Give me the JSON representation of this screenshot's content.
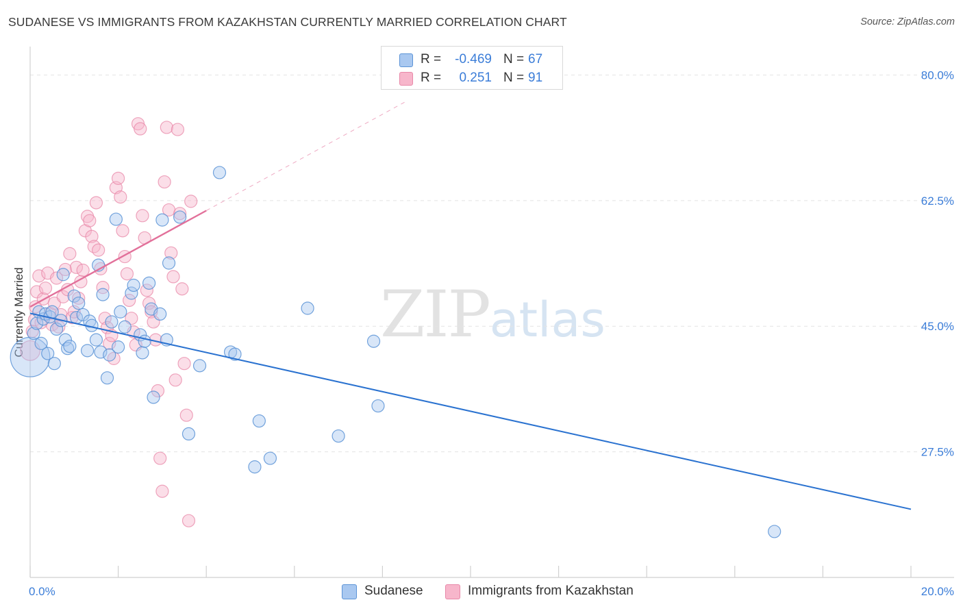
{
  "header": {
    "title": "SUDANESE VS IMMIGRANTS FROM KAZAKHSTAN CURRENTLY MARRIED CORRELATION CHART",
    "source": "Source: ZipAtlas.com"
  },
  "watermark": {
    "zip": "ZIP",
    "atlas": "atlas"
  },
  "legend_top": {
    "rows": [
      {
        "r_label": "R =",
        "r_value": "-0.469",
        "n_label": "N =",
        "n_value": "67",
        "color": "#a9c8f0"
      },
      {
        "r_label": "R =",
        "r_value": "0.251",
        "n_label": "N =",
        "n_value": "91",
        "color": "#f7b6cb"
      }
    ]
  },
  "legend_bottom": {
    "items": [
      {
        "label": "Sudanese",
        "color": "#a9c8f0"
      },
      {
        "label": "Immigrants from Kazakhstan",
        "color": "#f7b6cb"
      }
    ]
  },
  "chart_data": {
    "type": "scatter",
    "title": "SUDANESE VS IMMIGRANTS FROM KAZAKHSTAN CURRENTLY MARRIED CORRELATION CHART",
    "xlabel": "",
    "ylabel": "Currently Married",
    "xlim": [
      0,
      20
    ],
    "ylim": [
      10,
      83
    ],
    "x_tick_labels": [
      "0.0%",
      "20.0%"
    ],
    "y_ticks": [
      27.5,
      45.0,
      62.5,
      80.0
    ],
    "y_tick_labels": [
      "27.5%",
      "45.0%",
      "62.5%",
      "80.0%"
    ],
    "grid": "horizontal dashed",
    "legend_placement": "top-center and bottom",
    "colors": {
      "sudanese_fill": "#a9c8f0",
      "sudanese_stroke": "#5b93d6",
      "sudanese_line": "#2a72d0",
      "kazakh_fill": "#f7b6cb",
      "kazakh_stroke": "#e888a8",
      "kazakh_line": "#e2709a",
      "tick_label": "#3b7dd8",
      "axis": "#d0d0d0",
      "grid": "#e4e4e4"
    },
    "series": [
      {
        "name": "Sudanese",
        "r": -0.469,
        "n": 67,
        "trend": {
          "x0": 0.0,
          "y0": 46.8,
          "x1": 20.0,
          "y1": 19.5
        },
        "points": [
          [
            0.0,
            40.7,
            3.2
          ],
          [
            0.08,
            44.0,
            1
          ],
          [
            0.15,
            45.4,
            1
          ],
          [
            0.2,
            47.0,
            1
          ],
          [
            0.25,
            42.6,
            1
          ],
          [
            0.3,
            46.0,
            1
          ],
          [
            0.35,
            46.7,
            1
          ],
          [
            0.4,
            41.2,
            1
          ],
          [
            0.45,
            46.3,
            1
          ],
          [
            0.5,
            47.0,
            1
          ],
          [
            0.55,
            39.8,
            1
          ],
          [
            0.6,
            44.6,
            1
          ],
          [
            0.7,
            45.8,
            1
          ],
          [
            0.75,
            52.2,
            1
          ],
          [
            0.8,
            43.1,
            1
          ],
          [
            0.85,
            41.9,
            1
          ],
          [
            0.9,
            42.2,
            1
          ],
          [
            1.0,
            49.2,
            1
          ],
          [
            1.05,
            46.2,
            1
          ],
          [
            1.1,
            48.2,
            1
          ],
          [
            1.2,
            46.6,
            1
          ],
          [
            1.3,
            41.6,
            1
          ],
          [
            1.35,
            45.7,
            1
          ],
          [
            1.4,
            45.1,
            1
          ],
          [
            1.5,
            43.1,
            1
          ],
          [
            1.55,
            53.5,
            1
          ],
          [
            1.6,
            41.4,
            1
          ],
          [
            1.65,
            49.4,
            1
          ],
          [
            1.75,
            37.8,
            1
          ],
          [
            1.8,
            41.0,
            1
          ],
          [
            1.85,
            45.6,
            1
          ],
          [
            1.95,
            59.9,
            1
          ],
          [
            2.0,
            42.1,
            1
          ],
          [
            2.05,
            47.0,
            1
          ],
          [
            2.15,
            44.9,
            1
          ],
          [
            2.3,
            49.6,
            1
          ],
          [
            2.35,
            50.7,
            1
          ],
          [
            2.5,
            43.8,
            1
          ],
          [
            2.55,
            41.3,
            1
          ],
          [
            2.6,
            42.9,
            1
          ],
          [
            2.7,
            51.0,
            1
          ],
          [
            2.75,
            47.4,
            1
          ],
          [
            2.8,
            35.1,
            1
          ],
          [
            2.95,
            46.7,
            1
          ],
          [
            3.0,
            59.8,
            1
          ],
          [
            3.1,
            43.1,
            1
          ],
          [
            3.15,
            53.8,
            1
          ],
          [
            3.4,
            60.2,
            1
          ],
          [
            3.6,
            30.0,
            1
          ],
          [
            3.85,
            39.5,
            1
          ],
          [
            4.3,
            66.4,
            1
          ],
          [
            4.55,
            41.4,
            1
          ],
          [
            4.65,
            41.1,
            1
          ],
          [
            5.1,
            25.4,
            1
          ],
          [
            5.2,
            31.8,
            1
          ],
          [
            5.45,
            26.6,
            1
          ],
          [
            6.3,
            47.5,
            1
          ],
          [
            7.0,
            29.7,
            1
          ],
          [
            7.8,
            42.9,
            1
          ],
          [
            7.9,
            33.9,
            1
          ],
          [
            16.9,
            16.4,
            1
          ]
        ]
      },
      {
        "name": "Immigrants from Kazakhstan",
        "r": 0.251,
        "n": 91,
        "trend": {
          "x0": 0.0,
          "y0": 47.7,
          "x1": 4.0,
          "y1": 61.1,
          "dash_to_x": 8.5,
          "dash_to_y": 76.2
        },
        "points": [
          [
            0.0,
            41.6,
            1.6
          ],
          [
            0.05,
            44.3,
            1
          ],
          [
            0.1,
            45.9,
            1
          ],
          [
            0.12,
            47.7,
            1
          ],
          [
            0.15,
            49.8,
            1
          ],
          [
            0.2,
            52.0,
            1
          ],
          [
            0.25,
            45.5,
            1
          ],
          [
            0.3,
            48.8,
            1
          ],
          [
            0.35,
            50.3,
            1
          ],
          [
            0.4,
            52.4,
            1
          ],
          [
            0.45,
            46.8,
            1
          ],
          [
            0.5,
            45.2,
            1
          ],
          [
            0.55,
            48.2,
            1
          ],
          [
            0.6,
            51.7,
            1
          ],
          [
            0.65,
            44.9,
            1
          ],
          [
            0.7,
            46.6,
            1
          ],
          [
            0.75,
            49.1,
            1
          ],
          [
            0.8,
            52.9,
            1
          ],
          [
            0.85,
            50.1,
            1
          ],
          [
            0.9,
            55.1,
            1
          ],
          [
            0.95,
            46.2,
            1
          ],
          [
            1.0,
            47.0,
            1
          ],
          [
            1.05,
            53.2,
            1
          ],
          [
            1.1,
            48.9,
            1
          ],
          [
            1.15,
            51.2,
            1
          ],
          [
            1.2,
            52.8,
            1
          ],
          [
            1.25,
            58.3,
            1
          ],
          [
            1.3,
            60.3,
            1
          ],
          [
            1.35,
            59.7,
            1
          ],
          [
            1.4,
            57.5,
            1
          ],
          [
            1.45,
            56.1,
            1
          ],
          [
            1.5,
            62.2,
            1
          ],
          [
            1.55,
            55.6,
            1
          ],
          [
            1.6,
            53.0,
            1
          ],
          [
            1.65,
            50.4,
            1
          ],
          [
            1.7,
            46.1,
            1
          ],
          [
            1.75,
            44.8,
            1
          ],
          [
            1.8,
            42.6,
            1
          ],
          [
            1.85,
            43.7,
            1
          ],
          [
            1.9,
            40.5,
            1
          ],
          [
            1.95,
            64.3,
            1
          ],
          [
            2.0,
            65.6,
            1
          ],
          [
            2.05,
            63.0,
            1
          ],
          [
            2.1,
            58.3,
            1
          ],
          [
            2.15,
            54.7,
            1
          ],
          [
            2.2,
            52.3,
            1
          ],
          [
            2.25,
            48.6,
            1
          ],
          [
            2.3,
            46.1,
            1
          ],
          [
            2.35,
            44.2,
            1
          ],
          [
            2.4,
            42.4,
            1
          ],
          [
            2.45,
            73.2,
            1
          ],
          [
            2.5,
            72.5,
            1
          ],
          [
            2.55,
            60.4,
            1
          ],
          [
            2.6,
            57.3,
            1
          ],
          [
            2.65,
            50.0,
            1
          ],
          [
            2.7,
            48.2,
            1
          ],
          [
            2.75,
            47.0,
            1
          ],
          [
            2.8,
            45.6,
            1
          ],
          [
            2.85,
            43.1,
            1
          ],
          [
            2.9,
            36.0,
            1
          ],
          [
            2.95,
            26.6,
            1
          ],
          [
            3.0,
            22.0,
            1
          ],
          [
            3.05,
            65.1,
            1
          ],
          [
            3.1,
            72.7,
            1
          ],
          [
            3.15,
            61.2,
            1
          ],
          [
            3.2,
            55.2,
            1
          ],
          [
            3.25,
            51.9,
            1
          ],
          [
            3.3,
            37.5,
            1
          ],
          [
            3.35,
            72.4,
            1
          ],
          [
            3.4,
            60.7,
            1
          ],
          [
            3.45,
            50.2,
            1
          ],
          [
            3.5,
            39.8,
            1
          ],
          [
            3.55,
            32.6,
            1
          ],
          [
            3.6,
            17.9,
            1
          ],
          [
            3.65,
            62.4,
            1
          ]
        ]
      }
    ]
  }
}
